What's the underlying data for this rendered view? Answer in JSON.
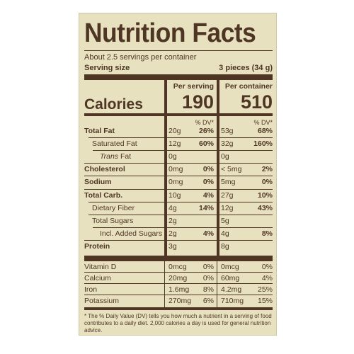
{
  "title": "Nutrition Facts",
  "servings_line": "About 2.5 servings per container",
  "serving_size_label": "Serving size",
  "serving_size_value": "3 pieces (34 g)",
  "per_serving_label": "Per serving",
  "per_container_label": "Per container",
  "calories_label": "Calories",
  "calories_serving": "190",
  "calories_container": "510",
  "dv_header": "% DV*",
  "rows": [
    {
      "name": "Total Fat",
      "bold": true,
      "indent": 0,
      "s_amt": "20g",
      "s_dv": "26%",
      "c_amt": "53g",
      "c_dv": "68%"
    },
    {
      "name": "Saturated Fat",
      "bold": false,
      "indent": 1,
      "s_amt": "12g",
      "s_dv": "60%",
      "c_amt": "32g",
      "c_dv": "160%"
    },
    {
      "name_italic": "Trans",
      "name": " Fat",
      "bold": false,
      "indent": 2,
      "s_amt": "0g",
      "s_dv": "",
      "c_amt": "0g",
      "c_dv": ""
    },
    {
      "name": "Cholesterol",
      "bold": true,
      "indent": 0,
      "s_amt": "0mg",
      "s_dv": "0%",
      "c_amt": "< 5mg",
      "c_dv": "2%"
    },
    {
      "name": "Sodium",
      "bold": true,
      "indent": 0,
      "s_amt": "0mg",
      "s_dv": "0%",
      "c_amt": "5mg",
      "c_dv": "0%"
    },
    {
      "name": "Total Carb.",
      "bold": true,
      "indent": 0,
      "s_amt": "10g",
      "s_dv": "4%",
      "c_amt": "27g",
      "c_dv": "10%"
    },
    {
      "name": "Dietary Fiber",
      "bold": false,
      "indent": 1,
      "s_amt": "4g",
      "s_dv": "14%",
      "c_amt": "12g",
      "c_dv": "43%"
    },
    {
      "name": "Total Sugars",
      "bold": false,
      "indent": 1,
      "s_amt": "2g",
      "s_dv": "",
      "c_amt": "5g",
      "c_dv": ""
    },
    {
      "name": "Incl. Added Sugars",
      "bold": false,
      "indent": 2,
      "s_amt": "2g",
      "s_dv": "4%",
      "c_amt": "4g",
      "c_dv": "8%"
    },
    {
      "name": "Protein",
      "bold": true,
      "indent": 0,
      "s_amt": "3g",
      "s_dv": "",
      "c_amt": "8g",
      "c_dv": ""
    }
  ],
  "minerals": [
    {
      "name": "Vitamin D",
      "s_amt": "0mcg",
      "s_dv": "0%",
      "c_amt": "0mcg",
      "c_dv": "0%"
    },
    {
      "name": "Calcium",
      "s_amt": "20mg",
      "s_dv": "0%",
      "c_amt": "60mg",
      "c_dv": "4%"
    },
    {
      "name": "Iron",
      "s_amt": "1.6mg",
      "s_dv": "8%",
      "c_amt": "4.2mg",
      "c_dv": "25%"
    },
    {
      "name": "Potassium",
      "s_amt": "270mg",
      "s_dv": "6%",
      "c_amt": "710mg",
      "c_dv": "15%"
    }
  ],
  "footnote": "* The % Daily Value (DV) tells you how much a nutrient in a serving of food contributes to a daily diet. 2,000 calories a day is used for general nutrition advice.",
  "colors": {
    "background": "#e7e1c0",
    "ink": "#4f3624"
  }
}
